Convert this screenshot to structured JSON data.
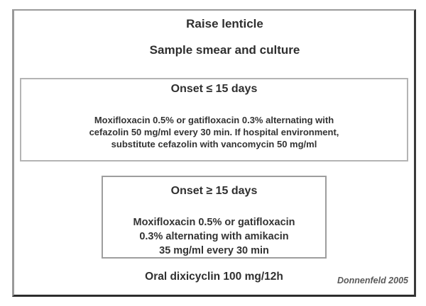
{
  "slide": {
    "title": "Raise lenticle",
    "subtitle": "Sample smear and culture",
    "boxes": [
      {
        "heading": "Onset ≤ 15 days",
        "lines": [
          "Moxifloxacin 0.5% or gatifloxacin 0.3% alternating with",
          "cefazolin 50 mg/ml every 30 min. If hospital environment,",
          "substitute cefazolin with vancomycin 50 mg/ml"
        ]
      },
      {
        "heading": "Onset ≥ 15 days",
        "lines": [
          "Moxifloxacin 0.5% or gatifloxacin",
          "0.3% alternating with amikacin",
          "35 mg/ml every 30 min"
        ]
      }
    ],
    "footer_note": "Oral dixicyclin 100 mg/12h",
    "attribution": "Donnenfeld 2005",
    "colors": {
      "background": "#ffffff",
      "text": "#2f2f2f",
      "attribution_text": "#595959",
      "frame_border_light": "#9a9a9a",
      "frame_border_dark": "#2d2d2d",
      "inner_box_border_light": "#b4b4b4",
      "inner_box_border": "#9e9e9e"
    }
  }
}
